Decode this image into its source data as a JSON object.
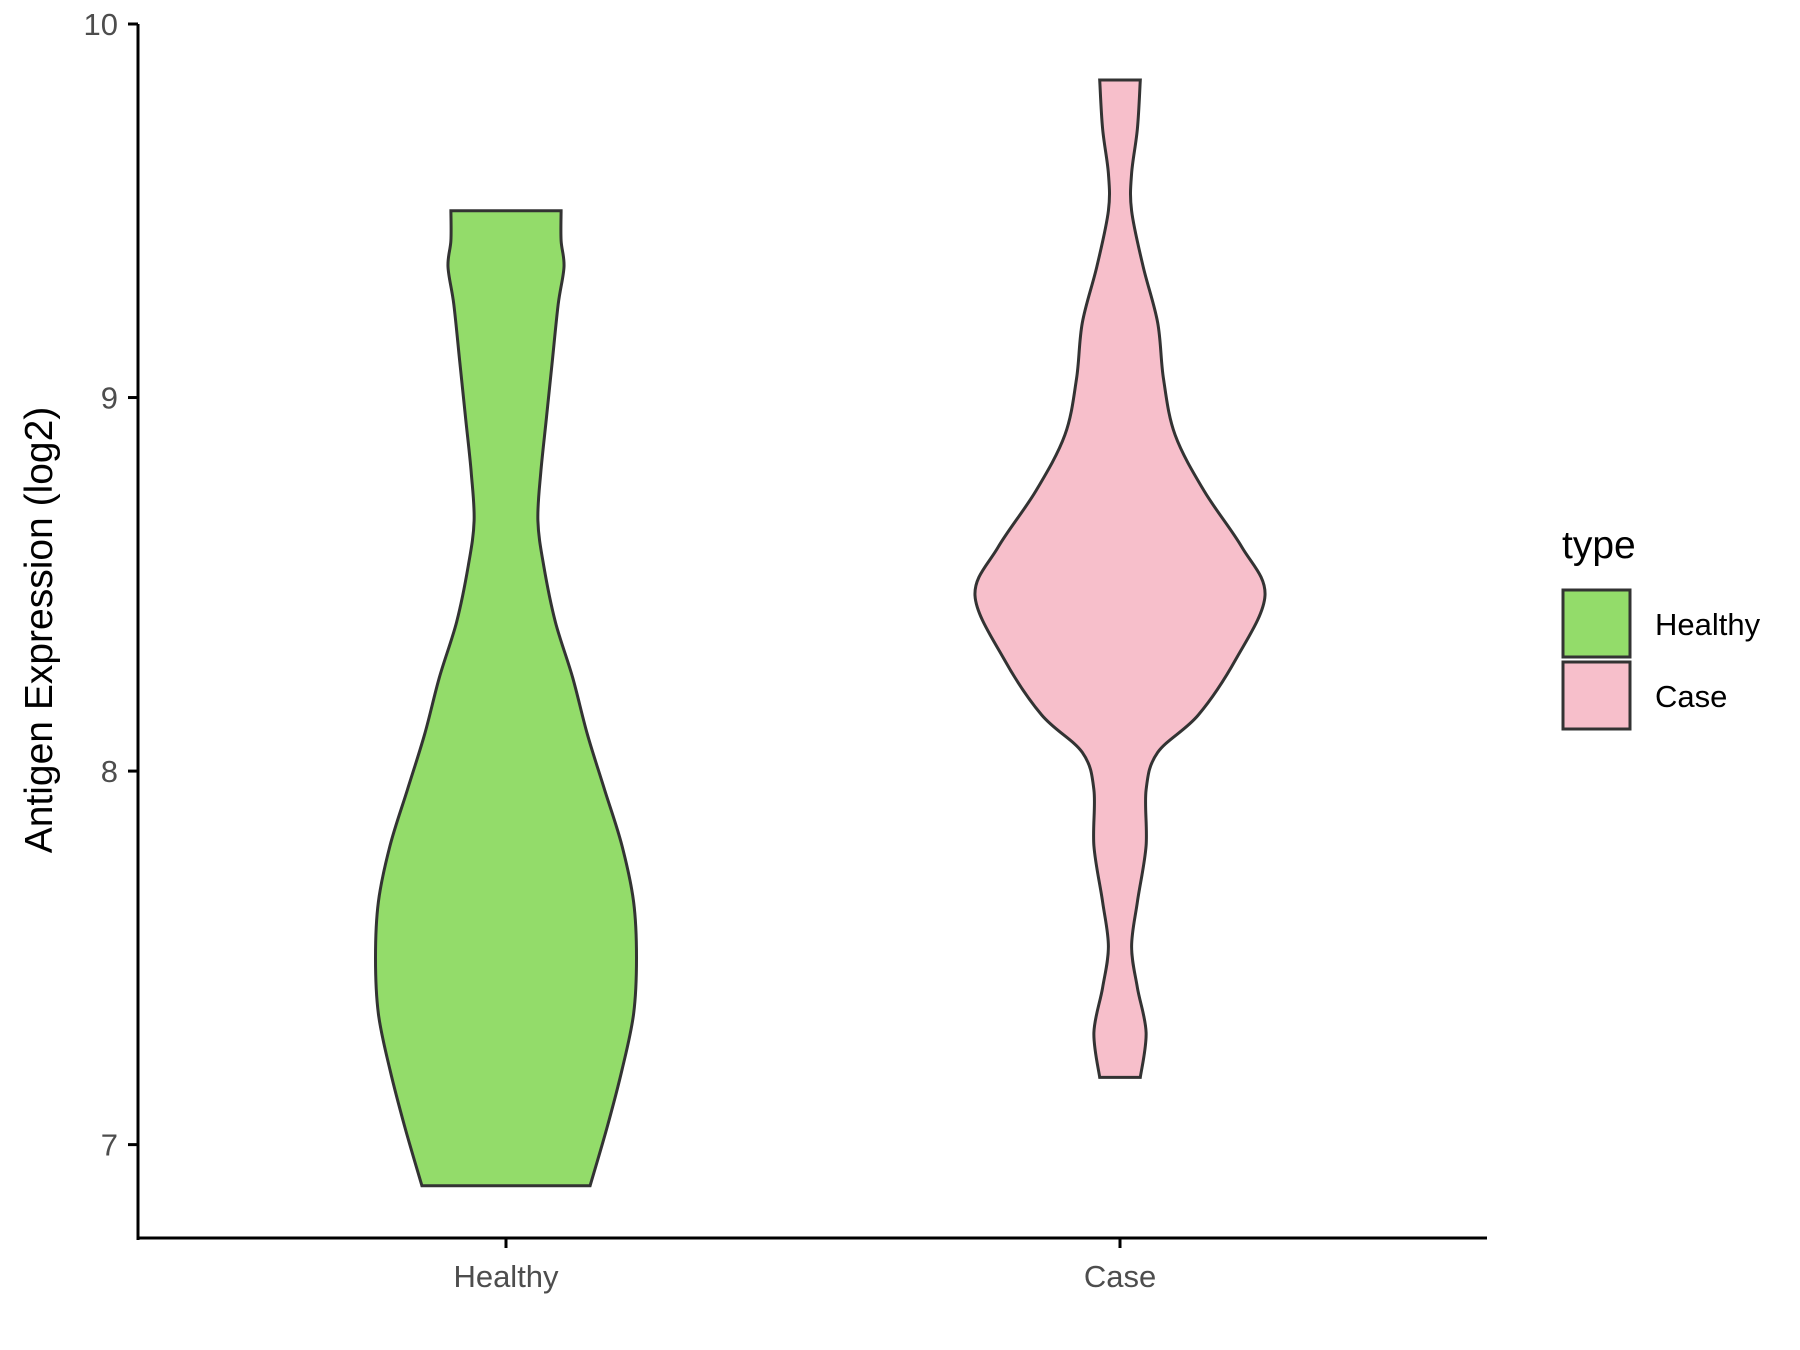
{
  "chart_data": {
    "type": "violin",
    "ylabel": "Antigen Expression (log2)",
    "xlabel": "",
    "ylim": [
      6.75,
      10.0
    ],
    "y_ticks": [
      "7",
      "8",
      "9",
      "10"
    ],
    "categories": [
      "Healthy",
      "Case"
    ],
    "grid": false,
    "legend": {
      "title": "type",
      "position": "right",
      "entries": [
        {
          "label": "Healthy",
          "color": "#93dc6a"
        },
        {
          "label": "Case",
          "color": "#f7bfcb"
        }
      ]
    },
    "series": [
      {
        "name": "Healthy",
        "color": "#93dc6a",
        "min": 6.89,
        "max": 9.5,
        "density_profile": [
          [
            6.89,
            0.29
          ],
          [
            7.05,
            0.35
          ],
          [
            7.2,
            0.4
          ],
          [
            7.35,
            0.44
          ],
          [
            7.5,
            0.45
          ],
          [
            7.65,
            0.44
          ],
          [
            7.8,
            0.4
          ],
          [
            7.95,
            0.34
          ],
          [
            8.1,
            0.28
          ],
          [
            8.25,
            0.23
          ],
          [
            8.4,
            0.17
          ],
          [
            8.55,
            0.13
          ],
          [
            8.67,
            0.11
          ],
          [
            8.8,
            0.12
          ],
          [
            8.95,
            0.14
          ],
          [
            9.1,
            0.16
          ],
          [
            9.25,
            0.18
          ],
          [
            9.35,
            0.2
          ],
          [
            9.42,
            0.19
          ],
          [
            9.5,
            0.19
          ]
        ]
      },
      {
        "name": "Case",
        "color": "#f7bfcb",
        "min": 7.18,
        "max": 9.85,
        "density_profile": [
          [
            7.18,
            0.07
          ],
          [
            7.3,
            0.09
          ],
          [
            7.42,
            0.06
          ],
          [
            7.53,
            0.04
          ],
          [
            7.65,
            0.06
          ],
          [
            7.8,
            0.09
          ],
          [
            7.95,
            0.09
          ],
          [
            8.05,
            0.13
          ],
          [
            8.15,
            0.27
          ],
          [
            8.3,
            0.4
          ],
          [
            8.47,
            0.5
          ],
          [
            8.6,
            0.42
          ],
          [
            8.75,
            0.29
          ],
          [
            8.9,
            0.19
          ],
          [
            9.05,
            0.15
          ],
          [
            9.2,
            0.13
          ],
          [
            9.35,
            0.08
          ],
          [
            9.5,
            0.04
          ],
          [
            9.6,
            0.04
          ],
          [
            9.72,
            0.06
          ],
          [
            9.85,
            0.07
          ]
        ]
      }
    ]
  }
}
